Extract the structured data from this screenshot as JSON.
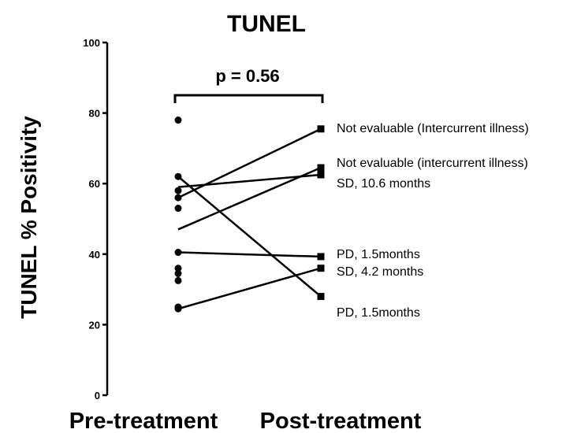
{
  "chart_data": {
    "type": "scatter",
    "title": "TUNEL",
    "ylabel": "TUNEL % Positivity",
    "xlabel": "",
    "categories": [
      "Pre-treatment",
      "Post-treatment"
    ],
    "ylim": [
      0,
      100
    ],
    "yticks": [
      "0",
      "20",
      "40",
      "60",
      "80",
      "100"
    ],
    "significance": {
      "label": "p = 0.56"
    },
    "pre_only_points": [
      78,
      62,
      58,
      56,
      53,
      40.5,
      36,
      34.5,
      32.5,
      25,
      24.5
    ],
    "paired": [
      {
        "pre": 56,
        "post": 75.5,
        "label": "Not evaluable (Intercurrent illness)"
      },
      {
        "pre": 47,
        "post": 64.5,
        "label": "Not evaluable (intercurrent illness)"
      },
      {
        "pre": 59,
        "post": 62.5,
        "label": "SD, 10.6 months"
      },
      {
        "pre": 40.5,
        "post": 39.3,
        "label": "PD, 1.5months"
      },
      {
        "pre": 24.5,
        "post": 36,
        "label": "SD, 4.2 months"
      },
      {
        "pre": 62,
        "post": 28,
        "label": "PD, 1.5months"
      }
    ],
    "grid": false,
    "colors": {
      "marker": "#000000",
      "line": "#000000"
    }
  }
}
